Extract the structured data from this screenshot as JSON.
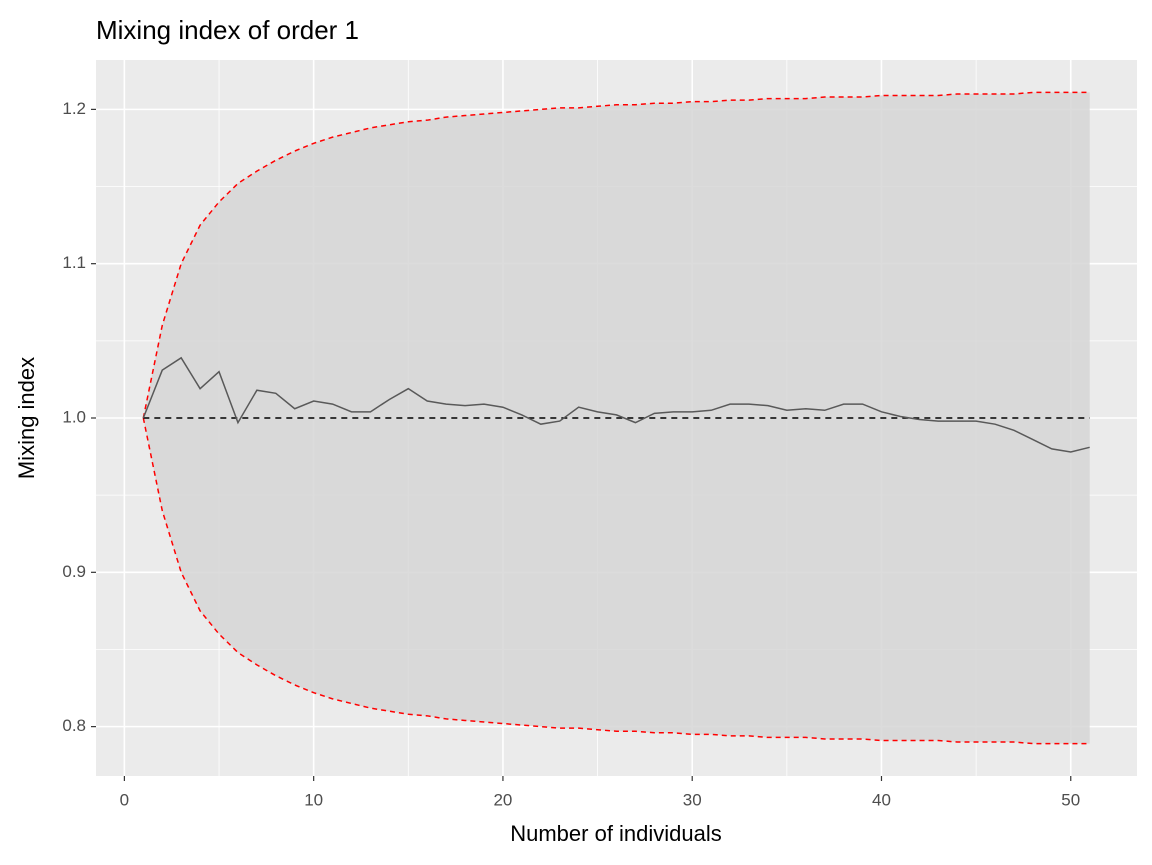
{
  "chart_data": {
    "type": "line",
    "title": "Mixing index of order 1",
    "x_label": "Number of individuals",
    "y_label": "Mixing index",
    "x": [
      1,
      2,
      3,
      4,
      5,
      6,
      7,
      8,
      9,
      10,
      11,
      12,
      13,
      14,
      15,
      16,
      17,
      18,
      19,
      20,
      21,
      22,
      23,
      24,
      25,
      26,
      27,
      28,
      29,
      30,
      31,
      32,
      33,
      34,
      35,
      36,
      37,
      38,
      39,
      40,
      41,
      42,
      43,
      44,
      45,
      46,
      47,
      48,
      49,
      50,
      51
    ],
    "series": [
      {
        "color": "#595959",
        "values": [
          1.0,
          1.031,
          1.039,
          1.019,
          1.03,
          0.997,
          1.018,
          1.016,
          1.006,
          1.011,
          1.009,
          1.004,
          1.004,
          1.012,
          1.019,
          1.011,
          1.009,
          1.008,
          1.009,
          1.007,
          1.002,
          0.996,
          0.998,
          1.007,
          1.004,
          1.002,
          0.997,
          1.003,
          1.004,
          1.004,
          1.005,
          1.009,
          1.009,
          1.008,
          1.005,
          1.006,
          1.005,
          1.009,
          1.009,
          1.004,
          1.001,
          0.999,
          0.998,
          0.998,
          0.998,
          0.996,
          0.992,
          0.986,
          0.98,
          0.978,
          0.981
        ]
      }
    ],
    "envelope": {
      "color": "#ff0000",
      "fill": "#d6d6d6",
      "upper": [
        1.0,
        1.06,
        1.1,
        1.125,
        1.14,
        1.152,
        1.16,
        1.167,
        1.173,
        1.178,
        1.182,
        1.185,
        1.188,
        1.19,
        1.192,
        1.193,
        1.195,
        1.196,
        1.197,
        1.198,
        1.199,
        1.2,
        1.201,
        1.201,
        1.202,
        1.203,
        1.203,
        1.204,
        1.204,
        1.205,
        1.205,
        1.206,
        1.206,
        1.207,
        1.207,
        1.207,
        1.208,
        1.208,
        1.208,
        1.209,
        1.209,
        1.209,
        1.209,
        1.21,
        1.21,
        1.21,
        1.21,
        1.211,
        1.211,
        1.211,
        1.211
      ],
      "lower": [
        1.0,
        0.94,
        0.9,
        0.875,
        0.86,
        0.848,
        0.84,
        0.833,
        0.827,
        0.822,
        0.818,
        0.815,
        0.812,
        0.81,
        0.808,
        0.807,
        0.805,
        0.804,
        0.803,
        0.802,
        0.801,
        0.8,
        0.799,
        0.799,
        0.798,
        0.797,
        0.797,
        0.796,
        0.796,
        0.795,
        0.795,
        0.794,
        0.794,
        0.793,
        0.793,
        0.793,
        0.792,
        0.792,
        0.792,
        0.791,
        0.791,
        0.791,
        0.791,
        0.79,
        0.79,
        0.79,
        0.79,
        0.789,
        0.789,
        0.789,
        0.789
      ]
    },
    "hline": {
      "value": 1,
      "color": "#000000"
    },
    "xlim": [
      -1.5,
      53.5
    ],
    "ylim": [
      0.768,
      1.232
    ],
    "xticks": [
      0,
      10,
      20,
      30,
      40,
      50
    ],
    "yticks": [
      0.8,
      0.9,
      {
        "value": 1,
        "label": "1.0"
      },
      1.1,
      1.2
    ],
    "xminor": [
      5,
      15,
      25,
      35,
      45
    ],
    "yminor": [
      0.85,
      0.95,
      1.05,
      1.15
    ],
    "grid": true
  }
}
